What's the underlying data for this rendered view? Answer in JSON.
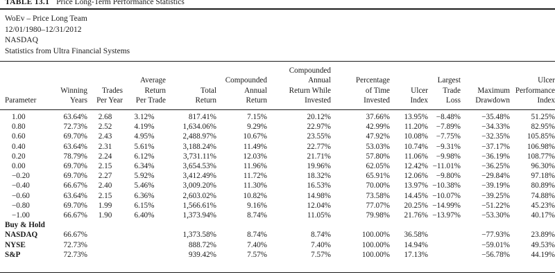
{
  "caption": {
    "number": "TABLE 13.1",
    "title": "Price Long-Term Performance Statistics"
  },
  "meta": {
    "line1": "WoEv – Price Long Team",
    "line2": "12/01/1980–12/31/2012",
    "line3": "NASDAQ",
    "line4": "Statistics from Ultra Financial Systems"
  },
  "headers": [
    "Parameter",
    "Winning\nYears",
    "Trades\nPer Year",
    "Average\nReturn\nPer Trade",
    "Total\nReturn",
    "Compounded\nAnnual\nReturn",
    "Compounded\nAnnual\nReturn While\nInvested",
    "Percentage\nof Time\nInvested",
    "Ulcer\nIndex",
    "Largest\nTrade\nLoss",
    "Maximum\nDrawdown",
    "Ulcer\nPerformance\nIndex"
  ],
  "rows": [
    [
      "1.00",
      "63.64%",
      "2.68",
      "3.12%",
      "817.41%",
      "7.15%",
      "20.12%",
      "37.66%",
      "13.95%",
      "−8.48%",
      "−35.48%",
      "51.25%"
    ],
    [
      "0.80",
      "72.73%",
      "2.52",
      "4.19%",
      "1,634.06%",
      "9.29%",
      "22.97%",
      "42.99%",
      "11.20%",
      "−7.89%",
      "−34.33%",
      "82.95%"
    ],
    [
      "0.60",
      "69.70%",
      "2.43",
      "4.95%",
      "2,488.97%",
      "10.67%",
      "23.55%",
      "47.92%",
      "10.08%",
      "−7.75%",
      "−32.35%",
      "105.85%"
    ],
    [
      "0.40",
      "63.64%",
      "2.31",
      "5.61%",
      "3,188.24%",
      "11.49%",
      "22.77%",
      "53.03%",
      "10.74%",
      "−9.31%",
      "−37.17%",
      "106.98%"
    ],
    [
      "0.20",
      "78.79%",
      "2.24",
      "6.12%",
      "3,731.11%",
      "12.03%",
      "21.71%",
      "57.80%",
      "11.06%",
      "−9.98%",
      "−36.19%",
      "108.77%"
    ],
    [
      "0.00",
      "69.70%",
      "2.15",
      "6.34%",
      "3,654.53%",
      "11.96%",
      "19.96%",
      "62.05%",
      "12.42%",
      "−11.01%",
      "−36.25%",
      "96.30%"
    ],
    [
      "−0.20",
      "69.70%",
      "2.27",
      "5.92%",
      "3,412.49%",
      "11.72%",
      "18.32%",
      "65.91%",
      "12.06%",
      "−9.80%",
      "−29.84%",
      "97.18%"
    ],
    [
      "−0.40",
      "66.67%",
      "2.40",
      "5.46%",
      "3,009.20%",
      "11.30%",
      "16.53%",
      "70.00%",
      "13.97%",
      "−10.38%",
      "−39.19%",
      "80.89%"
    ],
    [
      "−0.60",
      "63.64%",
      "2.15",
      "6.36%",
      "2,603.02%",
      "10.82%",
      "14.98%",
      "73.58%",
      "14.45%",
      "−10.07%",
      "−39.25%",
      "74.88%"
    ],
    [
      "−0.80",
      "69.70%",
      "1.99",
      "6.15%",
      "1,566.61%",
      "9.16%",
      "12.04%",
      "77.07%",
      "20.25%",
      "−14.99%",
      "−51.22%",
      "45.23%"
    ],
    [
      "−1.00",
      "66.67%",
      "1.90",
      "6.40%",
      "1,373.94%",
      "8.74%",
      "11.05%",
      "79.98%",
      "21.76%",
      "−13.97%",
      "−53.30%",
      "40.17%"
    ]
  ],
  "section_label": "Buy & Hold",
  "bh_rows": [
    [
      "NASDAQ",
      "66.67%",
      "",
      "",
      "1,373.58%",
      "8.74%",
      "8.74%",
      "100.00%",
      "36.58%",
      "",
      "−77.93%",
      "23.89%"
    ],
    [
      "NYSE",
      "72.73%",
      "",
      "",
      "888.72%",
      "7.40%",
      "7.40%",
      "100.00%",
      "14.94%",
      "",
      "−59.01%",
      "49.53%"
    ],
    [
      "S&P",
      "72.73%",
      "",
      "",
      "939.42%",
      "7.57%",
      "7.57%",
      "100.00%",
      "17.13%",
      "",
      "−56.78%",
      "44.19%"
    ]
  ]
}
